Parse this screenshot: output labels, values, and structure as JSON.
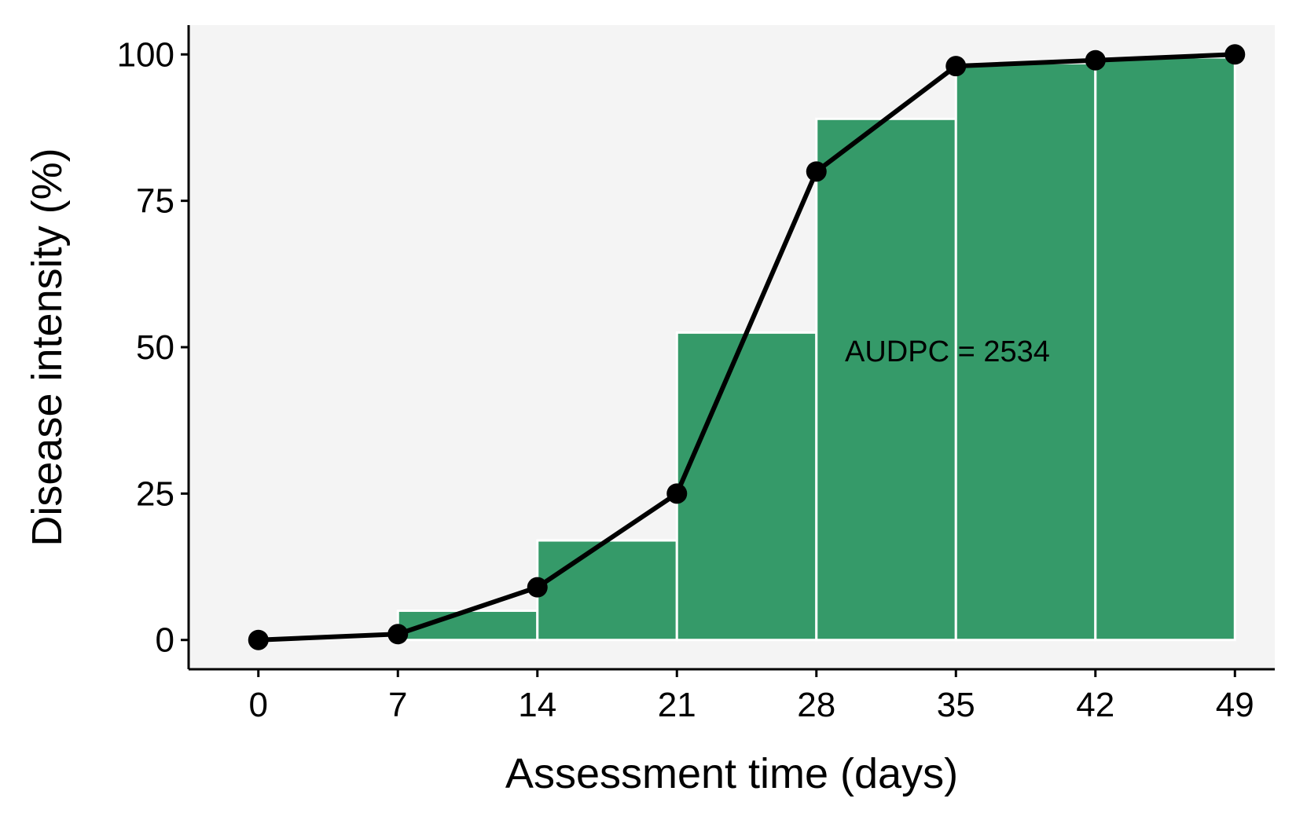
{
  "chart_data": {
    "type": "bar+line",
    "xlabel": "Assessment time (days)",
    "ylabel": "Disease intensity (%)",
    "annotation": "AUDPC = 2534",
    "xlim": [
      -3.5,
      51
    ],
    "ylim": [
      -5,
      105
    ],
    "x_ticks": [
      0,
      7,
      14,
      21,
      28,
      35,
      42,
      49
    ],
    "y_ticks": [
      0,
      25,
      50,
      75,
      100
    ],
    "line": {
      "x": [
        0,
        7,
        14,
        21,
        28,
        35,
        42,
        49
      ],
      "y": [
        0,
        1,
        9,
        25,
        80,
        98,
        99,
        100
      ]
    },
    "bars": [
      {
        "x0": 7,
        "x1": 14,
        "value": 5
      },
      {
        "x0": 14,
        "x1": 21,
        "value": 17
      },
      {
        "x0": 21,
        "x1": 28,
        "value": 52.5
      },
      {
        "x0": 28,
        "x1": 35,
        "value": 89
      },
      {
        "x0": 35,
        "x1": 42,
        "value": 98.5
      },
      {
        "x0": 42,
        "x1": 49,
        "value": 99.5
      }
    ],
    "grid": false,
    "legend": "none",
    "colors": {
      "bar_fill": "#359A69",
      "bar_edge": "#ffffff",
      "line": "#000000",
      "panel_bg": "#F4F4F4"
    }
  }
}
